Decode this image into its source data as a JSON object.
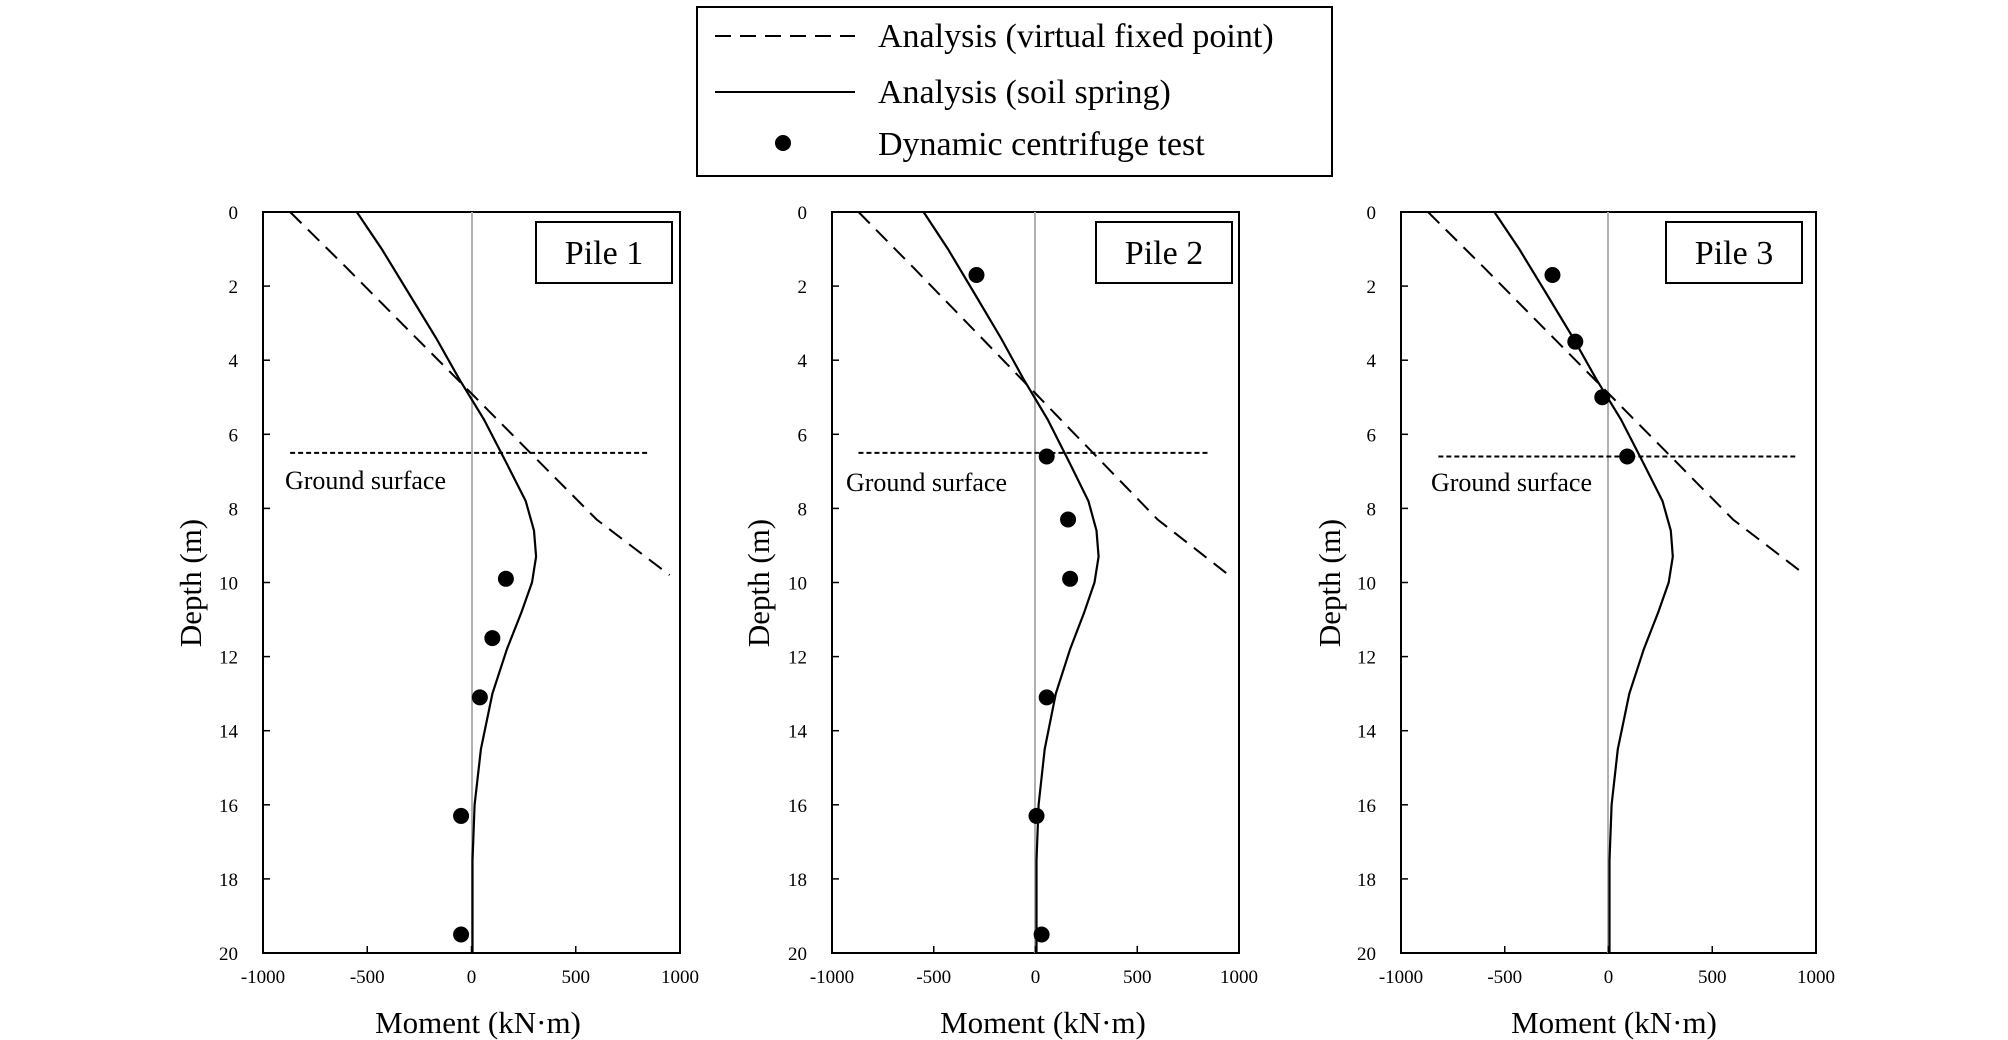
{
  "legend": {
    "items": [
      {
        "label": "Analysis (virtual fixed point)",
        "style": "dashed"
      },
      {
        "label": "Analysis (soil spring)",
        "style": "solid"
      },
      {
        "label": "Dynamic centrifuge test",
        "style": "marker"
      }
    ]
  },
  "chart_data": [
    {
      "type": "line",
      "panel_label": "Pile 1",
      "xlabel": "Moment (kN·m)",
      "ylabel": "Depth (m)",
      "xlim": [
        -1000,
        1000
      ],
      "ylim": [
        0,
        20
      ],
      "y_inverted": true,
      "xticks": [
        "-1000",
        "-500",
        "0",
        "500",
        "1000"
      ],
      "yticks": [
        "0",
        "2",
        "4",
        "6",
        "8",
        "10",
        "12",
        "14",
        "16",
        "18",
        "20"
      ],
      "annotation": {
        "text": "Ground surface",
        "depth": 6.5,
        "x_range": [
          -870,
          850
        ]
      },
      "series": [
        {
          "name": "Analysis (virtual fixed point)",
          "style": "dashed",
          "points": [
            [
              -870,
              0
            ],
            [
              -600,
              1.5
            ],
            [
              -300,
              3.2
            ],
            [
              0,
              4.9
            ],
            [
              300,
              6.6
            ],
            [
              600,
              8.3
            ],
            [
              950,
              9.8
            ]
          ]
        },
        {
          "name": "Analysis (soil spring)",
          "style": "solid",
          "points": [
            [
              -550,
              0
            ],
            [
              -430,
              1.0
            ],
            [
              -300,
              2.2
            ],
            [
              -170,
              3.4
            ],
            [
              -60,
              4.5
            ],
            [
              60,
              5.6
            ],
            [
              170,
              6.8
            ],
            [
              260,
              7.8
            ],
            [
              300,
              8.6
            ],
            [
              310,
              9.3
            ],
            [
              290,
              10.0
            ],
            [
              240,
              10.8
            ],
            [
              170,
              11.8
            ],
            [
              100,
              13.0
            ],
            [
              45,
              14.5
            ],
            [
              15,
              16.0
            ],
            [
              5,
              17.5
            ],
            [
              5,
              19.0
            ],
            [
              5,
              20.0
            ]
          ]
        },
        {
          "name": "Dynamic centrifuge test",
          "style": "marker",
          "points": [
            [
              165,
              9.9
            ],
            [
              100,
              11.5
            ],
            [
              40,
              13.1
            ],
            [
              -50,
              16.3
            ],
            [
              -50,
              19.5
            ]
          ]
        }
      ]
    },
    {
      "type": "line",
      "panel_label": "Pile 2",
      "xlabel": "Moment (kN·m)",
      "ylabel": "Depth (m)",
      "xlim": [
        -1000,
        1000
      ],
      "ylim": [
        0,
        20
      ],
      "y_inverted": true,
      "xticks": [
        "-1000",
        "-500",
        "0",
        "500",
        "1000"
      ],
      "yticks": [
        "0",
        "2",
        "4",
        "6",
        "8",
        "10",
        "12",
        "14",
        "16",
        "18",
        "20"
      ],
      "annotation": {
        "text": "Ground surface",
        "depth": 6.5,
        "x_range": [
          -870,
          850
        ]
      },
      "series": [
        {
          "name": "Analysis (virtual fixed point)",
          "style": "dashed",
          "points": [
            [
              -870,
              0
            ],
            [
              -600,
              1.5
            ],
            [
              -300,
              3.2
            ],
            [
              0,
              4.9
            ],
            [
              300,
              6.6
            ],
            [
              600,
              8.3
            ],
            [
              950,
              9.8
            ]
          ]
        },
        {
          "name": "Analysis (soil spring)",
          "style": "solid",
          "points": [
            [
              -550,
              0
            ],
            [
              -430,
              1.0
            ],
            [
              -300,
              2.2
            ],
            [
              -170,
              3.4
            ],
            [
              -60,
              4.5
            ],
            [
              60,
              5.6
            ],
            [
              170,
              6.8
            ],
            [
              260,
              7.8
            ],
            [
              300,
              8.6
            ],
            [
              310,
              9.3
            ],
            [
              290,
              10.0
            ],
            [
              240,
              10.8
            ],
            [
              170,
              11.8
            ],
            [
              100,
              13.0
            ],
            [
              45,
              14.5
            ],
            [
              15,
              16.0
            ],
            [
              5,
              17.5
            ],
            [
              5,
              19.0
            ],
            [
              5,
              20.0
            ]
          ]
        },
        {
          "name": "Dynamic centrifuge test",
          "style": "marker",
          "points": [
            [
              -290,
              1.7
            ],
            [
              55,
              6.6
            ],
            [
              160,
              8.3
            ],
            [
              170,
              9.9
            ],
            [
              55,
              13.1
            ],
            [
              5,
              16.3
            ],
            [
              30,
              19.5
            ]
          ]
        }
      ]
    },
    {
      "type": "line",
      "panel_label": "Pile 3",
      "xlabel": "Moment (kN·m)",
      "ylabel": "Depth (m)",
      "xlim": [
        -1000,
        1000
      ],
      "ylim": [
        0,
        20
      ],
      "y_inverted": true,
      "xticks": [
        "-1000",
        "-500",
        "0",
        "500",
        "1000"
      ],
      "yticks": [
        "0",
        "2",
        "4",
        "6",
        "8",
        "10",
        "12",
        "14",
        "16",
        "18",
        "20"
      ],
      "annotation": {
        "text": "Ground surface",
        "depth": 6.6,
        "x_range": [
          -820,
          900
        ]
      },
      "series": [
        {
          "name": "Analysis (virtual fixed point)",
          "style": "dashed",
          "points": [
            [
              -870,
              0
            ],
            [
              -600,
              1.5
            ],
            [
              -300,
              3.2
            ],
            [
              0,
              4.9
            ],
            [
              300,
              6.6
            ],
            [
              600,
              8.3
            ],
            [
              950,
              9.8
            ]
          ]
        },
        {
          "name": "Analysis (soil spring)",
          "style": "solid",
          "points": [
            [
              -550,
              0
            ],
            [
              -430,
              1.0
            ],
            [
              -300,
              2.2
            ],
            [
              -170,
              3.4
            ],
            [
              -60,
              4.5
            ],
            [
              60,
              5.6
            ],
            [
              170,
              6.8
            ],
            [
              260,
              7.8
            ],
            [
              300,
              8.6
            ],
            [
              310,
              9.3
            ],
            [
              290,
              10.0
            ],
            [
              240,
              10.8
            ],
            [
              170,
              11.8
            ],
            [
              100,
              13.0
            ],
            [
              45,
              14.5
            ],
            [
              15,
              16.0
            ],
            [
              5,
              17.5
            ],
            [
              5,
              19.0
            ],
            [
              5,
              20.0
            ]
          ]
        },
        {
          "name": "Dynamic centrifuge test",
          "style": "marker",
          "points": [
            [
              -270,
              1.7
            ],
            [
              -160,
              3.5
            ],
            [
              -30,
              5.0
            ],
            [
              90,
              6.6
            ]
          ]
        }
      ]
    }
  ]
}
